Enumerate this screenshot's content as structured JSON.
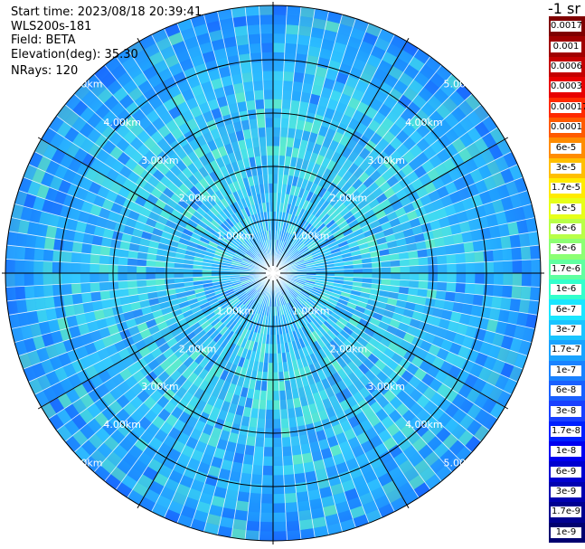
{
  "header": {
    "start_time": "Start time: 2023/08/18 20:39:41",
    "instrument": "WLS200s-181",
    "field": "Field: BETA",
    "elevation": "Elevation(deg): 35.30",
    "nrays": "NRays: 120"
  },
  "colorbar": {
    "title": "-1 sr",
    "labels": [
      "0.0017",
      "0.001",
      "0.0006",
      "0.0003",
      "0.00017",
      "0.0001",
      "6e-5",
      "3e-5",
      "1.7e-5",
      "1e-5",
      "6e-6",
      "3e-6",
      "1.7e-6",
      "1e-6",
      "6e-7",
      "3e-7",
      "1.7e-7",
      "1e-7",
      "6e-8",
      "3e-8",
      "1.7e-8",
      "1e-8",
      "6e-9",
      "3e-9",
      "1.7e-9",
      "1e-9"
    ],
    "colors": [
      "#7f0000",
      "#a00000",
      "#c40000",
      "#e80000",
      "#ff2a00",
      "#ff5a00",
      "#ff8c00",
      "#ffbf00",
      "#ffeb00",
      "#e6ff19",
      "#b8ff47",
      "#8cff73",
      "#5fffa0",
      "#32ffcc",
      "#19e6ff",
      "#19c4ff",
      "#19a3ff",
      "#1982ff",
      "#1960ff",
      "#1940ff",
      "#0020ff",
      "#0000f0",
      "#0000d0",
      "#0000b0",
      "#000090",
      "#000070"
    ]
  },
  "range_labels": [
    "1.00km",
    "2.00km",
    "3.00km",
    "4.00km",
    "5.00km"
  ]
}
